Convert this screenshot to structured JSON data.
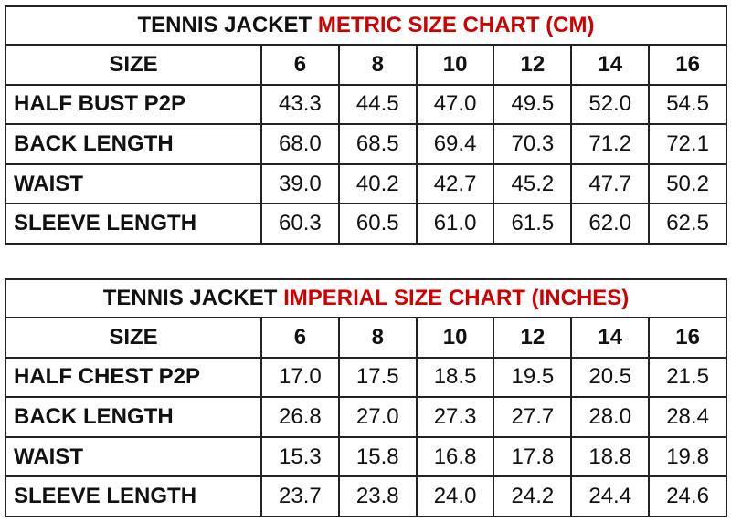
{
  "accent_color": "#d00000",
  "tables": [
    {
      "title_prefix": "TENNIS JACKET",
      "title_highlight": "METRIC SIZE CHART (CM)",
      "header": [
        "SIZE",
        "6",
        "8",
        "10",
        "12",
        "14",
        "16"
      ],
      "rows": [
        {
          "label": "HALF BUST P2P",
          "values": [
            "43.3",
            "44.5",
            "47.0",
            "49.5",
            "52.0",
            "54.5"
          ]
        },
        {
          "label": "BACK LENGTH",
          "values": [
            "68.0",
            "68.5",
            "69.4",
            "70.3",
            "71.2",
            "72.1"
          ]
        },
        {
          "label": "WAIST",
          "values": [
            "39.0",
            "40.2",
            "42.7",
            "45.2",
            "47.7",
            "50.2"
          ]
        },
        {
          "label": "SLEEVE LENGTH",
          "values": [
            "60.3",
            "60.5",
            "61.0",
            "61.5",
            "62.0",
            "62.5"
          ]
        }
      ]
    },
    {
      "title_prefix": "TENNIS JACKET",
      "title_highlight": "IMPERIAL SIZE CHART (INCHES)",
      "header": [
        "SIZE",
        "6",
        "8",
        "10",
        "12",
        "14",
        "16"
      ],
      "rows": [
        {
          "label": "HALF CHEST P2P",
          "values": [
            "17.0",
            "17.5",
            "18.5",
            "19.5",
            "20.5",
            "21.5"
          ]
        },
        {
          "label": "BACK LENGTH",
          "values": [
            "26.8",
            "27.0",
            "27.3",
            "27.7",
            "28.0",
            "28.4"
          ]
        },
        {
          "label": "WAIST",
          "values": [
            "15.3",
            "15.8",
            "16.8",
            "17.8",
            "18.8",
            "19.8"
          ]
        },
        {
          "label": "SLEEVE LENGTH",
          "values": [
            "23.7",
            "23.8",
            "24.0",
            "24.2",
            "24.4",
            "24.6"
          ]
        }
      ]
    }
  ]
}
